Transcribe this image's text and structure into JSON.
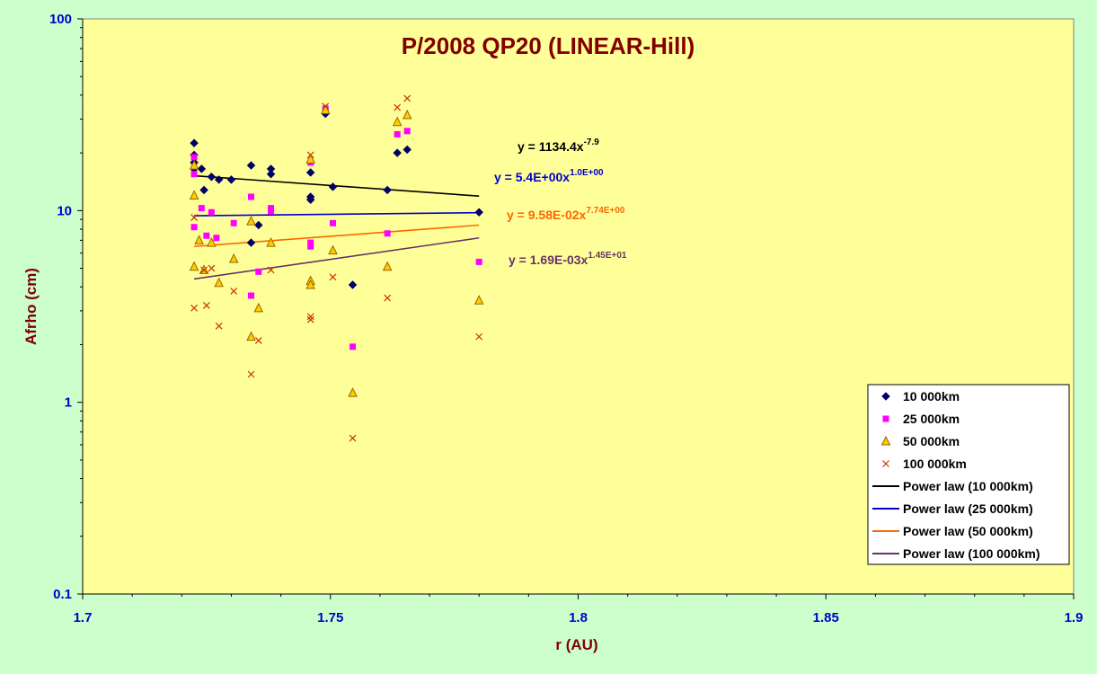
{
  "chart_data": {
    "type": "scatter",
    "title": "P/2008 QP20 (LINEAR-Hill)",
    "xlabel": "r (AU)",
    "ylabel": "Afrho (cm)",
    "xlim": [
      1.7,
      1.9
    ],
    "ylim": [
      0.1,
      100
    ],
    "yscale": "log",
    "x_ticks": [
      "1.7",
      "1.75",
      "1.8",
      "1.85",
      "1.9"
    ],
    "y_ticks": [
      "0.1",
      "1",
      "10",
      "100"
    ],
    "legend_position": "bottom-right",
    "plot_background": "#ffff99",
    "page_background": "#ccffcc",
    "series": [
      {
        "name": "10 000km",
        "marker": "diamond-icon",
        "color": "#000066",
        "points": [
          [
            1.7225,
            22.5
          ],
          [
            1.7225,
            19.5
          ],
          [
            1.7225,
            17.8
          ],
          [
            1.7225,
            16.5
          ],
          [
            1.724,
            16.5
          ],
          [
            1.726,
            15.0
          ],
          [
            1.7245,
            12.8
          ],
          [
            1.7275,
            14.5
          ],
          [
            1.73,
            14.5
          ],
          [
            1.734,
            17.2
          ],
          [
            1.7355,
            8.4
          ],
          [
            1.734,
            6.8
          ],
          [
            1.738,
            16.5
          ],
          [
            1.738,
            15.5
          ],
          [
            1.746,
            15.8
          ],
          [
            1.746,
            11.8
          ],
          [
            1.746,
            11.4
          ],
          [
            1.749,
            32.0
          ],
          [
            1.7505,
            13.3
          ],
          [
            1.7545,
            4.1
          ],
          [
            1.7615,
            12.8
          ],
          [
            1.7635,
            20.0
          ],
          [
            1.7655,
            20.8
          ],
          [
            1.78,
            9.8
          ]
        ]
      },
      {
        "name": "25 000km",
        "marker": "square-icon",
        "color": "#ff00ff",
        "points": [
          [
            1.7225,
            19.0
          ],
          [
            1.7225,
            15.5
          ],
          [
            1.7225,
            8.2
          ],
          [
            1.724,
            10.3
          ],
          [
            1.726,
            9.8
          ],
          [
            1.725,
            7.4
          ],
          [
            1.727,
            7.2
          ],
          [
            1.7305,
            8.6
          ],
          [
            1.734,
            11.8
          ],
          [
            1.738,
            10.3
          ],
          [
            1.738,
            9.9
          ],
          [
            1.7355,
            4.8
          ],
          [
            1.734,
            3.6
          ],
          [
            1.746,
            17.8
          ],
          [
            1.746,
            6.8
          ],
          [
            1.746,
            6.5
          ],
          [
            1.749,
            34.0
          ],
          [
            1.7505,
            8.6
          ],
          [
            1.7545,
            1.95
          ],
          [
            1.7615,
            7.6
          ],
          [
            1.7635,
            25.0
          ],
          [
            1.7655,
            26.0
          ],
          [
            1.78,
            5.4
          ]
        ]
      },
      {
        "name": "50 000km",
        "marker": "triangle-icon",
        "color": "#ffcc00",
        "points": [
          [
            1.7225,
            17.2
          ],
          [
            1.7225,
            12.0
          ],
          [
            1.7225,
            5.1
          ],
          [
            1.7235,
            7.0
          ],
          [
            1.726,
            6.8
          ],
          [
            1.7245,
            4.9
          ],
          [
            1.7275,
            4.2
          ],
          [
            1.7305,
            5.6
          ],
          [
            1.734,
            8.8
          ],
          [
            1.7355,
            3.1
          ],
          [
            1.734,
            2.2
          ],
          [
            1.738,
            6.8
          ],
          [
            1.746,
            18.5
          ],
          [
            1.746,
            4.3
          ],
          [
            1.746,
            4.1
          ],
          [
            1.749,
            33.5
          ],
          [
            1.7505,
            6.2
          ],
          [
            1.7545,
            1.12
          ],
          [
            1.7615,
            5.1
          ],
          [
            1.7635,
            29.0
          ],
          [
            1.7655,
            31.5
          ],
          [
            1.78,
            3.4
          ]
        ]
      },
      {
        "name": "100 000km",
        "marker": "x-icon",
        "color": "#cc3300",
        "points": [
          [
            1.7225,
            9.2
          ],
          [
            1.7225,
            3.1
          ],
          [
            1.7245,
            4.9
          ],
          [
            1.726,
            5.0
          ],
          [
            1.725,
            3.2
          ],
          [
            1.7275,
            2.5
          ],
          [
            1.7305,
            3.8
          ],
          [
            1.734,
            1.4
          ],
          [
            1.7355,
            2.1
          ],
          [
            1.738,
            4.9
          ],
          [
            1.746,
            19.5
          ],
          [
            1.746,
            2.8
          ],
          [
            1.746,
            2.7
          ],
          [
            1.749,
            35.0
          ],
          [
            1.7505,
            4.5
          ],
          [
            1.7545,
            0.65
          ],
          [
            1.7615,
            3.5
          ],
          [
            1.7635,
            34.5
          ],
          [
            1.7655,
            38.5
          ],
          [
            1.78,
            2.2
          ]
        ]
      }
    ],
    "fits": [
      {
        "name": "Power law (10 000km)",
        "color": "#000000",
        "x": [
          1.7225,
          1.78
        ],
        "y": [
          15.2,
          11.9
        ],
        "eq_base": "y = 1134.4x",
        "eq_exp": "-7.9"
      },
      {
        "name": "Power law (25 000km)",
        "color": "#0000cc",
        "x": [
          1.7225,
          1.78
        ],
        "y": [
          9.4,
          9.75
        ],
        "eq_base": "y = 5.4E+00x",
        "eq_exp": "1.0E+00"
      },
      {
        "name": "Power law (50 000km)",
        "color": "#ff6600",
        "x": [
          1.7225,
          1.78
        ],
        "y": [
          6.5,
          8.4
        ],
        "eq_base": "y = 9.58E-02x",
        "eq_exp": "7.74E+00"
      },
      {
        "name": "Power law (100 000km)",
        "color": "#663366",
        "x": [
          1.7225,
          1.78
        ],
        "y": [
          4.4,
          7.2
        ],
        "eq_base": "y = 1.69E-03x",
        "eq_exp": "1.45E+01"
      }
    ]
  }
}
